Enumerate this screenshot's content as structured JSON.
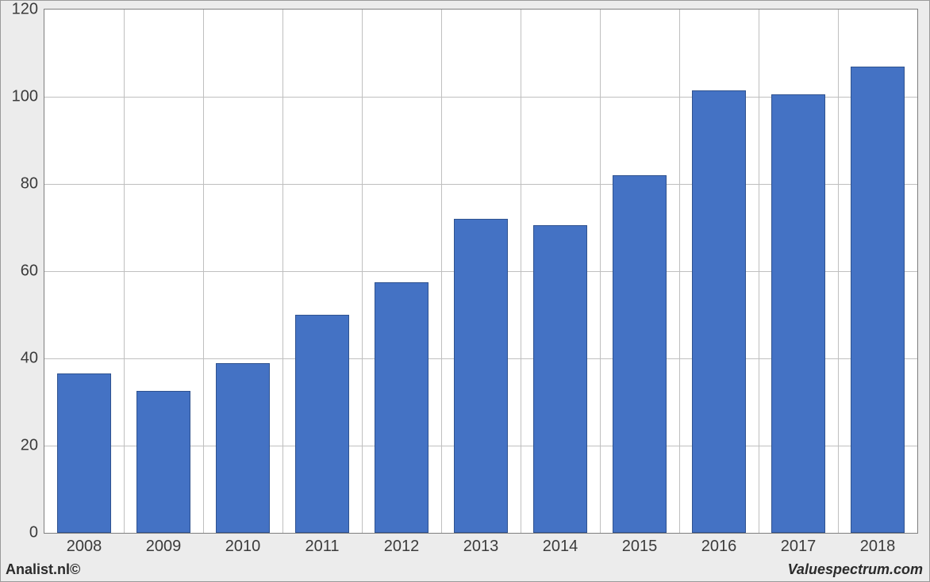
{
  "chart": {
    "type": "bar",
    "categories": [
      "2008",
      "2009",
      "2010",
      "2011",
      "2012",
      "2013",
      "2014",
      "2015",
      "2016",
      "2017",
      "2018"
    ],
    "values": [
      36.5,
      32.5,
      39,
      50,
      57.5,
      72,
      70.5,
      82,
      101.5,
      100.5,
      107
    ],
    "bar_color": "#4472c4",
    "bar_border_color": "#2f528f",
    "bar_width_ratio": 0.68,
    "ylim": [
      0,
      120
    ],
    "ytick_step": 20,
    "y_ticks": [
      "0",
      "20",
      "40",
      "60",
      "80",
      "100",
      "120"
    ],
    "background_color": "#ffffff",
    "frame_background": "#ececec",
    "grid_color": "#bfbfbf",
    "axis_border_color": "#7f7f7f",
    "tick_fontsize": 20,
    "tick_color": "#3b3b3b"
  },
  "footer": {
    "left": "Analist.nl©",
    "right": "Valuespectrum.com"
  }
}
